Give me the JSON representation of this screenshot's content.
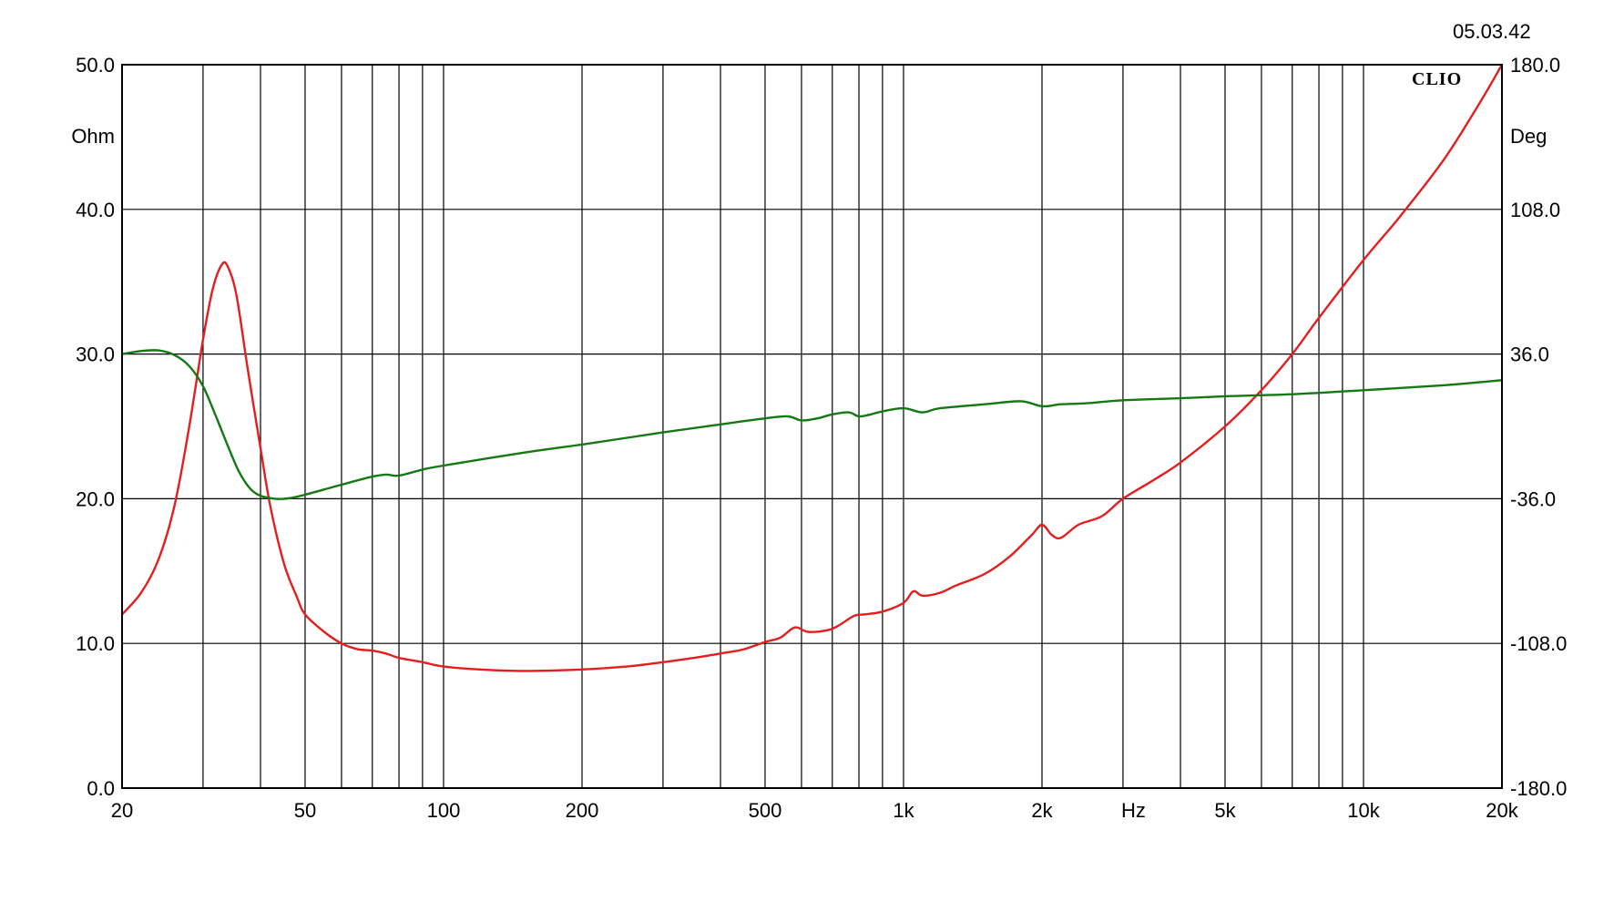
{
  "chart_data": {
    "type": "line",
    "date_stamp": "05.03.42",
    "logo": "CLIO",
    "x_axis": {
      "scale": "log",
      "range": [
        20,
        20000
      ],
      "unit_label": "Hz",
      "tick_labels": [
        {
          "value": 20,
          "label": "20"
        },
        {
          "value": 50,
          "label": "50"
        },
        {
          "value": 100,
          "label": "100"
        },
        {
          "value": 200,
          "label": "200"
        },
        {
          "value": 500,
          "label": "500"
        },
        {
          "value": 1000,
          "label": "1k"
        },
        {
          "value": 2000,
          "label": "2k"
        },
        {
          "value": 5000,
          "label": "5k"
        },
        {
          "value": 10000,
          "label": "10k"
        },
        {
          "value": 20000,
          "label": "20k"
        }
      ],
      "unit_label_position_value": 3162,
      "gridlines": [
        20,
        30,
        40,
        50,
        60,
        70,
        80,
        90,
        100,
        200,
        300,
        400,
        500,
        600,
        700,
        800,
        900,
        1000,
        2000,
        3000,
        4000,
        5000,
        6000,
        7000,
        8000,
        9000,
        10000,
        20000
      ]
    },
    "y_left": {
      "unit_label": "Ohm",
      "range": [
        0,
        50
      ],
      "tick_labels": [
        "0.0",
        "10.0",
        "20.0",
        "30.0",
        "40.0",
        "50.0"
      ],
      "tick_values": [
        0,
        10,
        20,
        30,
        40,
        50
      ]
    },
    "y_right": {
      "unit_label": "Deg",
      "range": [
        -180,
        180
      ],
      "tick_labels": [
        "-180.0",
        "-108.0",
        "-36.0",
        "36.0",
        "108.0",
        "180.0"
      ],
      "tick_values": [
        -180,
        -108,
        -36,
        36,
        108,
        180
      ]
    },
    "grid": true,
    "series": [
      {
        "axis": "left",
        "color": "#e41e1e",
        "points": [
          [
            20,
            12.0
          ],
          [
            22,
            13.5
          ],
          [
            24,
            15.8
          ],
          [
            26,
            19.5
          ],
          [
            28,
            25.0
          ],
          [
            30,
            31.0
          ],
          [
            31.5,
            34.5
          ],
          [
            33,
            36.2
          ],
          [
            34,
            36.0
          ],
          [
            35.5,
            34.0
          ],
          [
            37.5,
            29.0
          ],
          [
            40,
            23.5
          ],
          [
            42,
            19.5
          ],
          [
            45,
            15.5
          ],
          [
            48,
            13.2
          ],
          [
            50,
            12.0
          ],
          [
            55,
            10.8
          ],
          [
            60,
            10.0
          ],
          [
            65,
            9.6
          ],
          [
            70,
            9.5
          ],
          [
            75,
            9.3
          ],
          [
            80,
            9.0
          ],
          [
            90,
            8.7
          ],
          [
            100,
            8.4
          ],
          [
            120,
            8.2
          ],
          [
            150,
            8.1
          ],
          [
            200,
            8.2
          ],
          [
            250,
            8.4
          ],
          [
            300,
            8.7
          ],
          [
            350,
            9.0
          ],
          [
            400,
            9.3
          ],
          [
            450,
            9.6
          ],
          [
            500,
            10.1
          ],
          [
            540,
            10.4
          ],
          [
            580,
            11.1
          ],
          [
            620,
            10.8
          ],
          [
            680,
            10.9
          ],
          [
            720,
            11.2
          ],
          [
            780,
            11.9
          ],
          [
            820,
            12.0
          ],
          [
            900,
            12.2
          ],
          [
            1000,
            12.8
          ],
          [
            1050,
            13.6
          ],
          [
            1100,
            13.3
          ],
          [
            1200,
            13.5
          ],
          [
            1300,
            14.0
          ],
          [
            1500,
            14.8
          ],
          [
            1700,
            16.0
          ],
          [
            1900,
            17.5
          ],
          [
            2000,
            18.2
          ],
          [
            2100,
            17.5
          ],
          [
            2200,
            17.3
          ],
          [
            2400,
            18.2
          ],
          [
            2700,
            18.8
          ],
          [
            3000,
            20.0
          ],
          [
            3500,
            21.3
          ],
          [
            4000,
            22.5
          ],
          [
            5000,
            25.0
          ],
          [
            6000,
            27.5
          ],
          [
            7000,
            30.0
          ],
          [
            8000,
            32.5
          ],
          [
            10000,
            36.5
          ],
          [
            12000,
            39.5
          ],
          [
            15000,
            43.5
          ],
          [
            18000,
            47.5
          ],
          [
            20000,
            50.0
          ]
        ]
      },
      {
        "axis": "right",
        "color": "#147814",
        "points": [
          [
            20,
            36.0
          ],
          [
            22,
            37.5
          ],
          [
            24,
            37.8
          ],
          [
            26,
            35.5
          ],
          [
            28,
            30.0
          ],
          [
            30,
            20.0
          ],
          [
            32,
            5.0
          ],
          [
            34,
            -10.0
          ],
          [
            36,
            -23.0
          ],
          [
            38,
            -31.0
          ],
          [
            40,
            -34.5
          ],
          [
            43,
            -36.0
          ],
          [
            46,
            -35.8
          ],
          [
            50,
            -34.0
          ],
          [
            60,
            -29.0
          ],
          [
            70,
            -25.0
          ],
          [
            75,
            -24.0
          ],
          [
            80,
            -24.5
          ],
          [
            90,
            -21.5
          ],
          [
            100,
            -19.5
          ],
          [
            150,
            -13.0
          ],
          [
            200,
            -9.0
          ],
          [
            300,
            -3.0
          ],
          [
            400,
            1.0
          ],
          [
            500,
            4.0
          ],
          [
            560,
            5.0
          ],
          [
            600,
            3.0
          ],
          [
            650,
            4.0
          ],
          [
            700,
            6.0
          ],
          [
            760,
            7.0
          ],
          [
            800,
            5.0
          ],
          [
            850,
            6.0
          ],
          [
            900,
            7.5
          ],
          [
            1000,
            9.0
          ],
          [
            1100,
            7.0
          ],
          [
            1200,
            9.0
          ],
          [
            1500,
            11.0
          ],
          [
            1800,
            12.5
          ],
          [
            2000,
            10.0
          ],
          [
            2200,
            11.0
          ],
          [
            2500,
            11.5
          ],
          [
            3000,
            13.0
          ],
          [
            4000,
            14.0
          ],
          [
            5000,
            15.0
          ],
          [
            7000,
            16.0
          ],
          [
            10000,
            18.0
          ],
          [
            15000,
            20.5
          ],
          [
            20000,
            23.0
          ]
        ]
      }
    ]
  }
}
